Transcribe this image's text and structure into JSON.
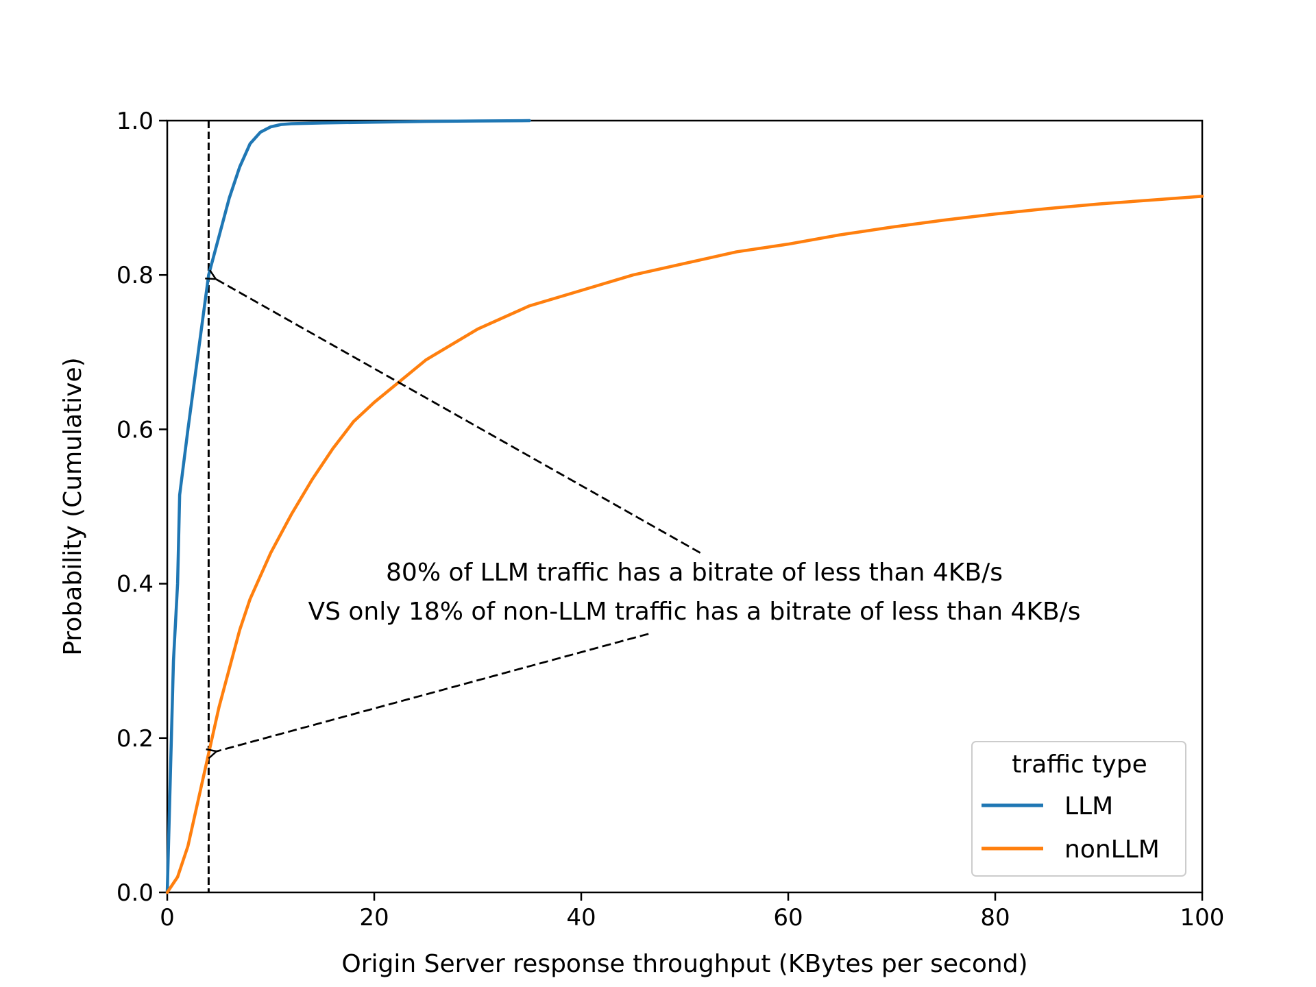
{
  "chart_data": {
    "type": "line",
    "title": "",
    "xlabel": "Origin Server response throughput (KBytes per second)",
    "ylabel": "Probability (Cumulative)",
    "xlim": [
      0,
      100
    ],
    "ylim": [
      0,
      1
    ],
    "x_ticks": [
      0,
      20,
      40,
      60,
      80,
      100
    ],
    "x_tick_labels": [
      "0",
      "20",
      "40",
      "60",
      "80",
      "100"
    ],
    "y_ticks": [
      0,
      0.2,
      0.4,
      0.6,
      0.8,
      1.0
    ],
    "y_tick_labels": [
      "0.0",
      "0.2",
      "0.4",
      "0.6",
      "0.8",
      "1.0"
    ],
    "grid": false,
    "series": [
      {
        "name": "LLM",
        "color": "#1f77b4",
        "points": [
          [
            0,
            0
          ],
          [
            0.3,
            0.15
          ],
          [
            0.6,
            0.3
          ],
          [
            1,
            0.4
          ],
          [
            1.2,
            0.515
          ],
          [
            2,
            0.6
          ],
          [
            3,
            0.7
          ],
          [
            3.5,
            0.75
          ],
          [
            4,
            0.8
          ],
          [
            5,
            0.85
          ],
          [
            6,
            0.9
          ],
          [
            7,
            0.94
          ],
          [
            8,
            0.97
          ],
          [
            9,
            0.985
          ],
          [
            10,
            0.992
          ],
          [
            11,
            0.995
          ],
          [
            12,
            0.996
          ],
          [
            15,
            0.997
          ],
          [
            20,
            0.998
          ],
          [
            25,
            0.999
          ],
          [
            30,
            0.9995
          ],
          [
            35,
            1.0
          ]
        ]
      },
      {
        "name": "nonLLM",
        "color": "#ff7f0e",
        "points": [
          [
            0,
            0
          ],
          [
            1,
            0.02
          ],
          [
            2,
            0.06
          ],
          [
            3,
            0.12
          ],
          [
            4,
            0.18
          ],
          [
            5,
            0.24
          ],
          [
            6,
            0.29
          ],
          [
            7,
            0.34
          ],
          [
            8,
            0.38
          ],
          [
            10,
            0.44
          ],
          [
            12,
            0.49
          ],
          [
            14,
            0.535
          ],
          [
            16,
            0.575
          ],
          [
            18,
            0.61
          ],
          [
            20,
            0.635
          ],
          [
            25,
            0.69
          ],
          [
            30,
            0.73
          ],
          [
            35,
            0.76
          ],
          [
            40,
            0.78
          ],
          [
            45,
            0.8
          ],
          [
            50,
            0.815
          ],
          [
            55,
            0.83
          ],
          [
            60,
            0.84
          ],
          [
            65,
            0.852
          ],
          [
            70,
            0.862
          ],
          [
            75,
            0.871
          ],
          [
            80,
            0.879
          ],
          [
            85,
            0.886
          ],
          [
            90,
            0.892
          ],
          [
            95,
            0.897
          ],
          [
            100,
            0.902
          ]
        ]
      }
    ],
    "vline": {
      "x": 4,
      "style": "dashed",
      "color": "#000000"
    },
    "annotations": {
      "text_line1": "80% of LLM traffic has a bitrate of less than 4KB/s",
      "text_line2": "VS only 18% of non-LLM traffic has a bitrate of less than 4KB/s",
      "arrows": [
        {
          "target": [
            4,
            0.8
          ],
          "tail": [
            51.5,
            0.44
          ]
        },
        {
          "target": [
            4,
            0.18
          ],
          "tail": [
            46.5,
            0.335
          ]
        }
      ]
    },
    "legend": {
      "title": "traffic type",
      "placement": "lower-right",
      "entries": [
        "LLM",
        "nonLLM"
      ]
    }
  }
}
